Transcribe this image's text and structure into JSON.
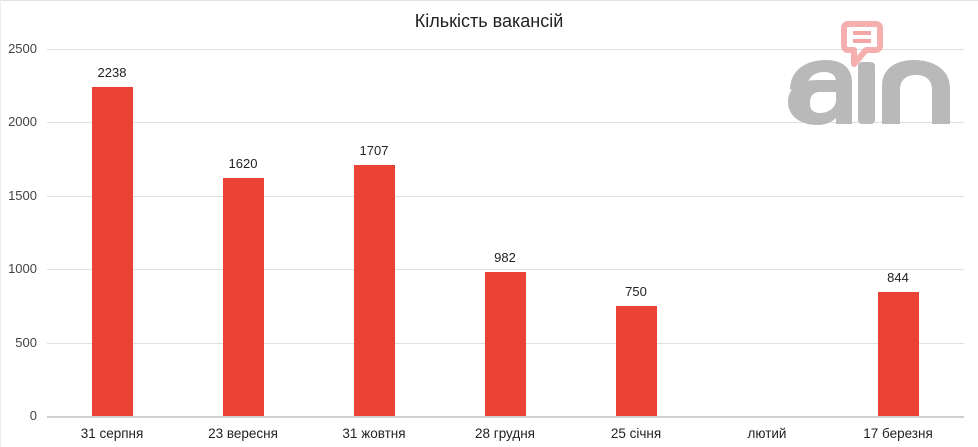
{
  "chart_data": {
    "type": "bar",
    "title": "Кількість вакансій",
    "categories": [
      "31 серпня",
      "23 вересня",
      "31 жовтня",
      "28 грудня",
      "25 січня",
      "лютий",
      "17 березня"
    ],
    "values": [
      2238,
      1620,
      1707,
      982,
      750,
      null,
      844
    ],
    "value_labels": [
      "2238",
      "1620",
      "1707",
      "982",
      "750",
      "",
      "844"
    ],
    "xlabel": "",
    "ylabel": "",
    "ylim": [
      0,
      2500
    ],
    "yticks": [
      0,
      500,
      1000,
      1500,
      2000,
      2500
    ],
    "ytick_labels": [
      "0",
      "500",
      "1000",
      "1500",
      "2000",
      "2500"
    ],
    "grid": true,
    "legend": "none",
    "bar_color": "#ea4335"
  },
  "watermark": {
    "text": "ain",
    "icon": "chat-bubble-icon",
    "text_color": "#b9b9b9",
    "icon_color": "#f4a6a6"
  }
}
